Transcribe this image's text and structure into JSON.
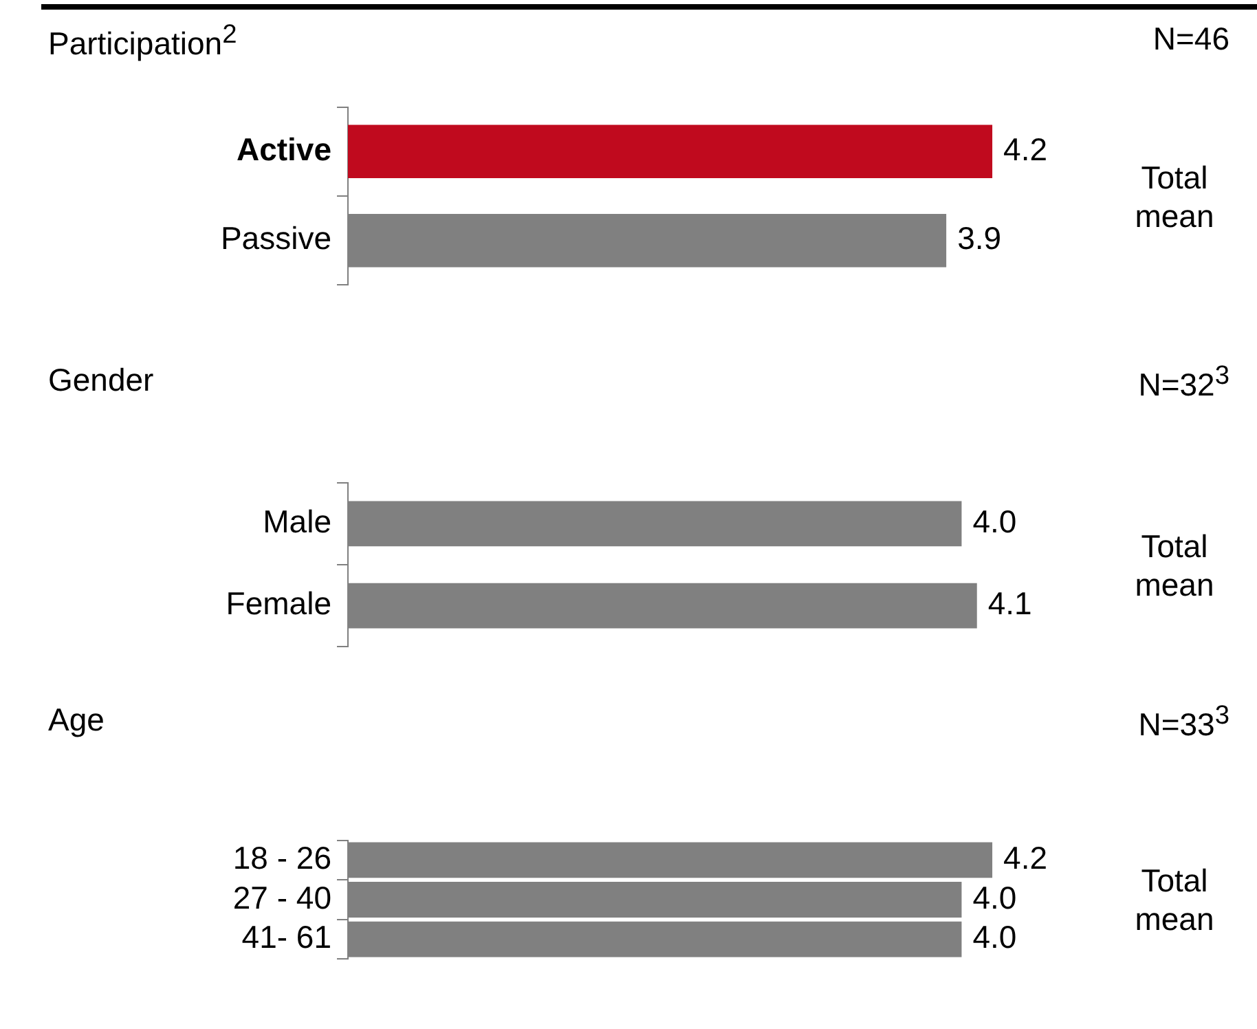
{
  "chart_data": [
    {
      "type": "bar",
      "orientation": "horizontal",
      "title": "Participation$^{2}$",
      "categories": [
        "Active",
        "Passive"
      ],
      "values": [
        4.2,
        3.9
      ],
      "value_labels": [
        "4.2",
        "3.9"
      ],
      "colors": [
        "#c00a1e",
        "#808080"
      ],
      "legend": false,
      "tick_labels": "y",
      "annotations": [
        "N=46",
        "Total mean"
      ]
    },
    {
      "type": "bar",
      "orientation": "horizontal",
      "title": "Gender",
      "categories": [
        "Male",
        "Female"
      ],
      "values": [
        4.0,
        4.1
      ],
      "value_labels": [
        "4.0",
        "4.1"
      ],
      "colors": [
        "#808080",
        "#808080"
      ],
      "legend": false,
      "tick_labels": "y",
      "annotations": [
        "N=32$^{3}$",
        "Total mean"
      ]
    },
    {
      "type": "bar",
      "orientation": "horizontal",
      "title": "Age",
      "categories": [
        "18 - 26",
        "27 - 40",
        "41- 61"
      ],
      "values": [
        4.2,
        4.0,
        4.0
      ],
      "value_labels": [
        "4.2",
        "4.0",
        "4.0"
      ],
      "colors": [
        "#808080",
        "#808080",
        "#808080"
      ],
      "legend": false,
      "tick_labels": "y",
      "annotations": [
        "N=33$^{3}$",
        "Total mean"
      ]
    }
  ]
}
